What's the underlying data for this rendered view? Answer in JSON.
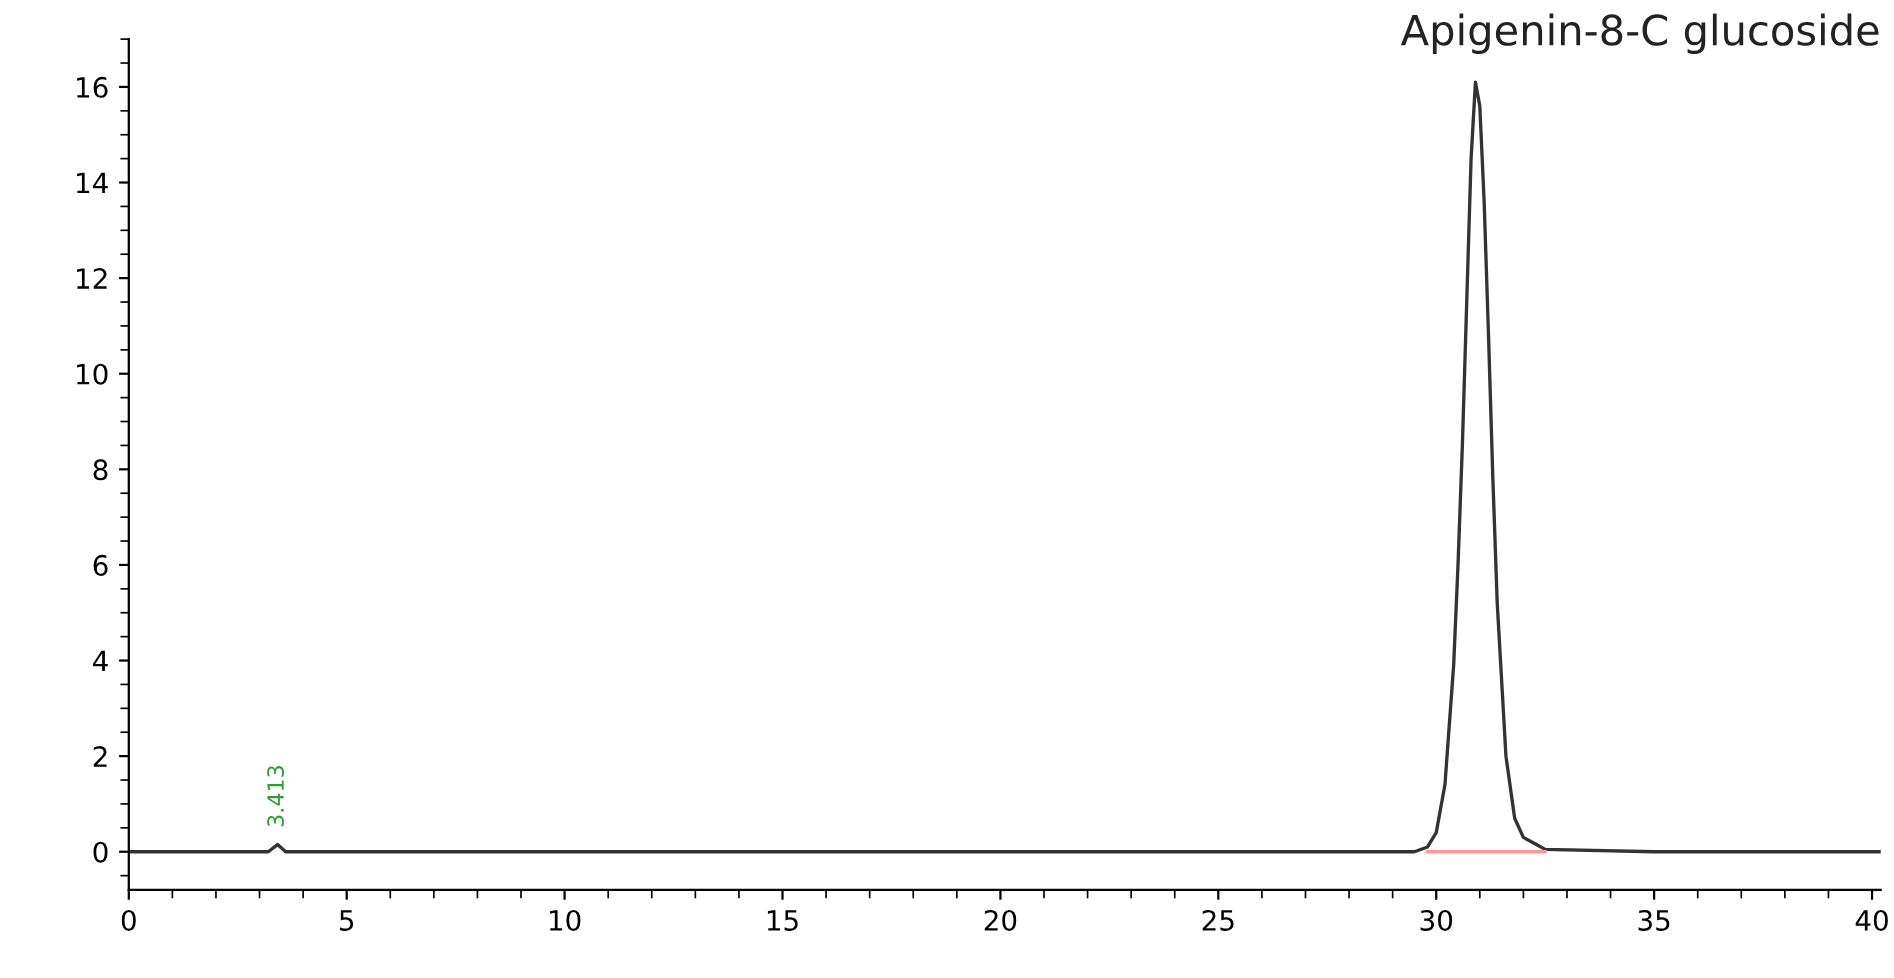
{
  "chart_data": {
    "type": "line",
    "x": [
      0,
      3.2,
      3.413,
      3.6,
      10,
      20,
      29.5,
      29.8,
      30.0,
      30.2,
      30.4,
      30.5,
      30.6,
      30.7,
      30.8,
      30.9,
      31.0,
      31.1,
      31.2,
      31.3,
      31.4,
      31.6,
      31.8,
      32.0,
      32.3,
      32.5,
      35,
      40.2
    ],
    "series": [
      {
        "color": "#333333",
        "values": [
          0,
          0,
          0.15,
          0,
          0,
          0,
          0,
          0.1,
          0.4,
          1.4,
          3.9,
          6.0,
          8.5,
          11.5,
          14.5,
          16.1,
          15.6,
          13.6,
          10.8,
          7.8,
          5.2,
          2.0,
          0.7,
          0.3,
          0.15,
          0.05,
          0,
          0
        ]
      },
      {
        "type": "line",
        "color": "#ff9999",
        "x": [
          29.8,
          32.5
        ],
        "values": [
          0,
          0
        ]
      }
    ],
    "annotations": [
      "Apigenin-8-C glucoside",
      {
        "text": "3.413",
        "x": 3.413,
        "y": 0.15
      }
    ],
    "xlim": [
      0,
      40.2
    ],
    "ylim": [
      -0.8,
      17
    ],
    "xticks": [
      0,
      5,
      10,
      15,
      20,
      25,
      30,
      35,
      40
    ],
    "yticks": [
      0,
      2,
      4,
      6,
      8,
      10,
      12,
      14,
      16
    ],
    "grid": false,
    "legend": false
  }
}
